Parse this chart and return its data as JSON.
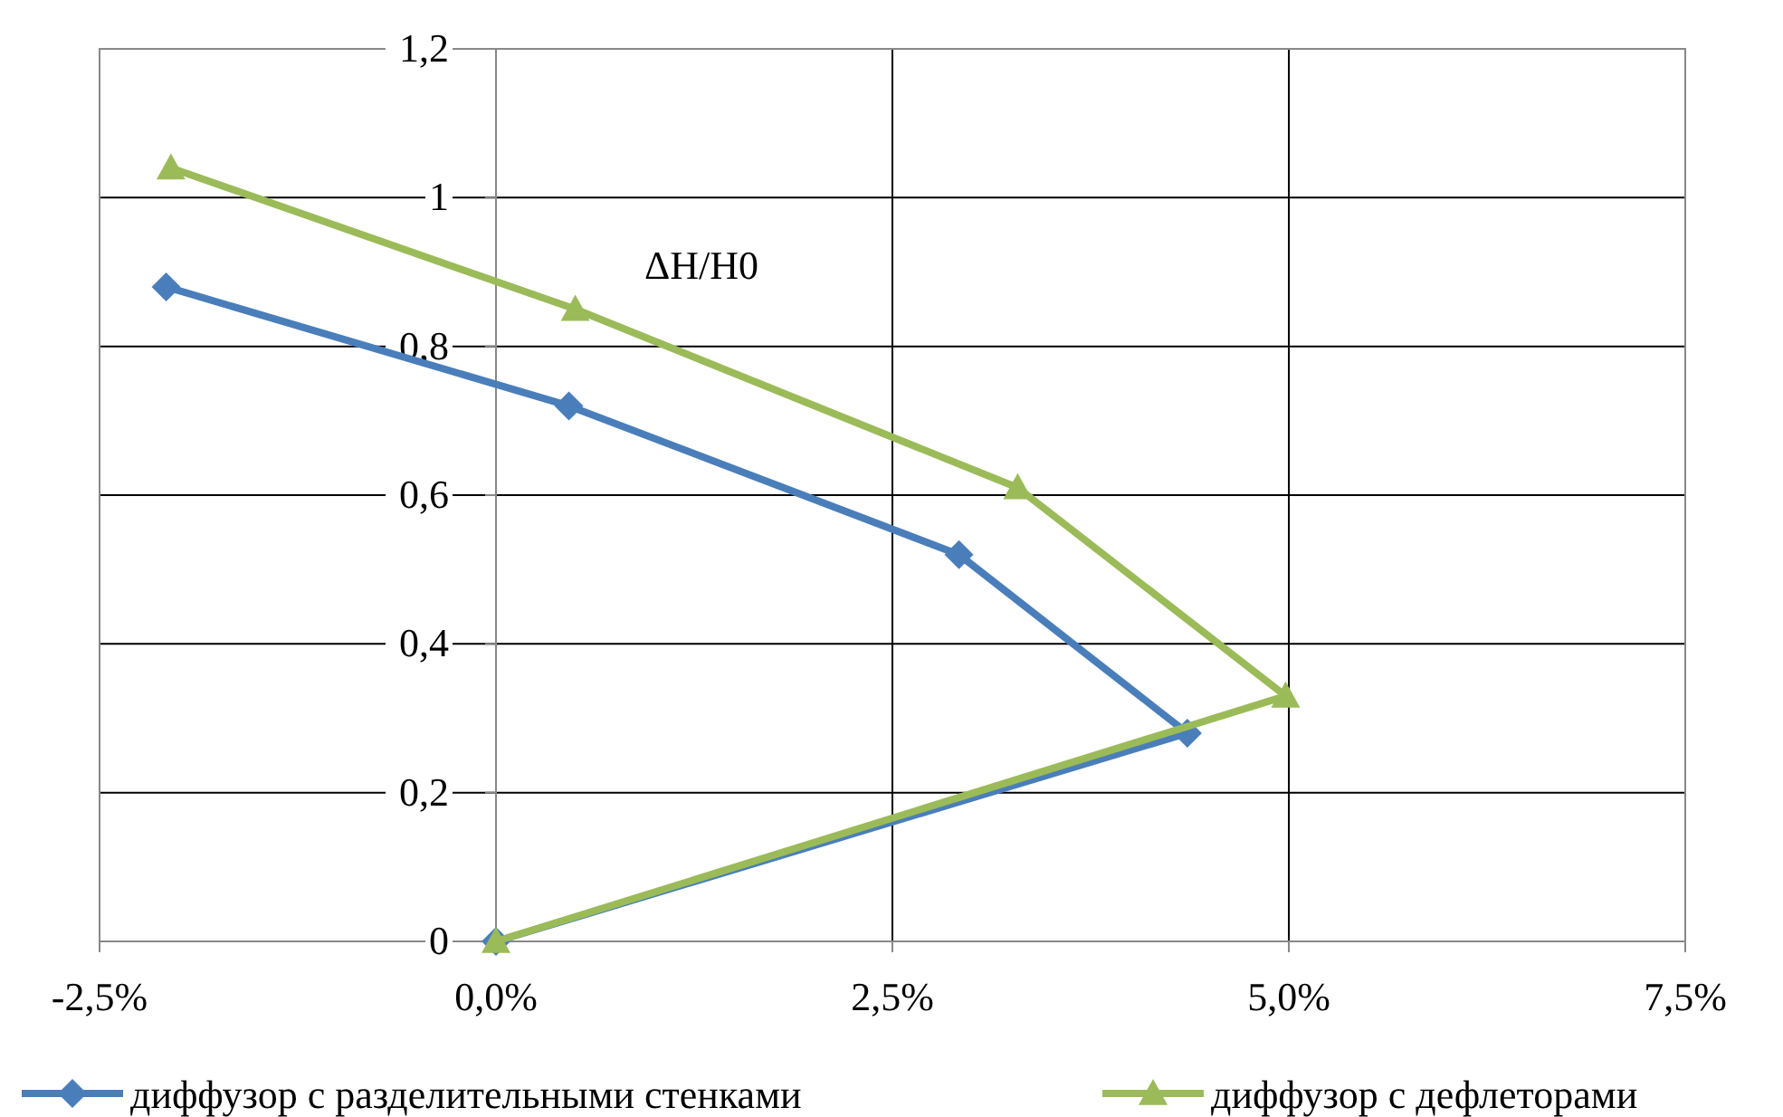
{
  "chart_data": {
    "type": "line",
    "annotations": [
      "ΔH/H0"
    ],
    "xlim": [
      -2.5,
      7.5
    ],
    "xticks": [
      {
        "value": -2.5,
        "label": "-2,5%"
      },
      {
        "value": 0,
        "label": "0,0%"
      },
      {
        "value": 2.5,
        "label": "2,5%"
      },
      {
        "value": 5,
        "label": "5,0%"
      },
      {
        "value": 7.5,
        "label": "7,5%"
      }
    ],
    "ylim": [
      0,
      1.2
    ],
    "yticks": [
      0,
      {
        "value": 0.2,
        "label": "0,2"
      },
      {
        "value": 0.4,
        "label": "0,4"
      },
      {
        "value": 0.6,
        "label": "0,6"
      },
      {
        "value": 0.8,
        "label": "0,8"
      },
      1,
      {
        "value": 1.2,
        "label": "1,2"
      }
    ],
    "grid": true,
    "legend": "bottom",
    "line_style": "solid",
    "series": [
      {
        "name": "диффузор с разделительными стенками",
        "color": "#4a7ebb",
        "marker": "diamond",
        "x": [
          -2.08,
          0.46,
          2.92,
          4.36,
          0
        ],
        "values": [
          0.88,
          0.72,
          0.52,
          0.28,
          0
        ]
      },
      {
        "name": "диффузор с дефлеторами",
        "color": "#9bbb59",
        "marker": "triangle",
        "x": [
          -2.05,
          0.5,
          3.29,
          4.98,
          0
        ],
        "values": [
          1.04,
          0.85,
          0.61,
          0.33,
          0
        ]
      }
    ]
  }
}
